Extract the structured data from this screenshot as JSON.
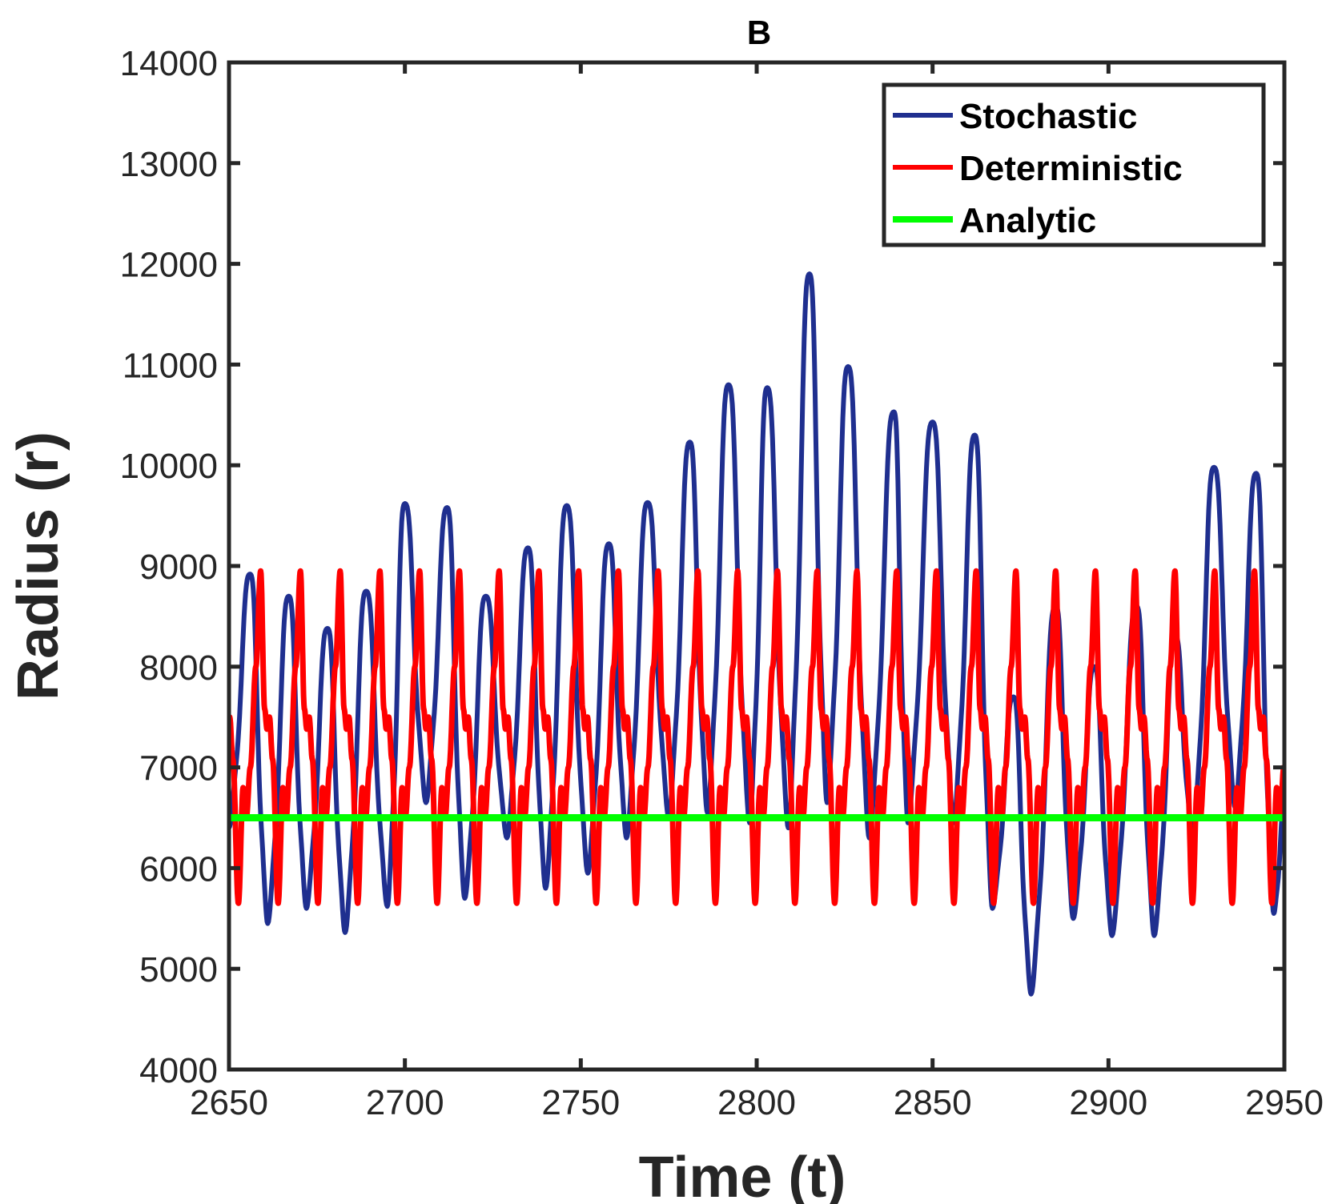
{
  "chart_data": {
    "type": "line",
    "title": "B",
    "xlabel": "Time (t)",
    "ylabel": "Radius (r)",
    "xlim": [
      2650,
      2950
    ],
    "ylim": [
      4000,
      14000
    ],
    "xticks": [
      "2650",
      "2700",
      "2750",
      "2800",
      "2850",
      "2900",
      "2950"
    ],
    "yticks": [
      "4000",
      "5000",
      "6000",
      "7000",
      "8000",
      "9000",
      "10000",
      "11000",
      "12000",
      "13000",
      "14000"
    ],
    "grid": false,
    "legend_position": "top-right",
    "series": [
      {
        "name": "Stochastic",
        "color": "#1f2f8f",
        "peaks": [
          [
            2656,
            8920
          ],
          [
            2667,
            8700
          ],
          [
            2678,
            8380
          ],
          [
            2689,
            8750
          ],
          [
            2700,
            9620
          ],
          [
            2712,
            9580
          ],
          [
            2723,
            8700
          ],
          [
            2735,
            9180
          ],
          [
            2746,
            9600
          ],
          [
            2758,
            9220
          ],
          [
            2769,
            9630
          ],
          [
            2781,
            10230
          ],
          [
            2792,
            10800
          ],
          [
            2803,
            10770
          ],
          [
            2815,
            11900
          ],
          [
            2826,
            10980
          ],
          [
            2839,
            10530
          ],
          [
            2850,
            10430
          ],
          [
            2862,
            10300
          ],
          [
            2873,
            7700
          ],
          [
            2885,
            8600
          ],
          [
            2896,
            8000
          ],
          [
            2908,
            8600
          ],
          [
            2919,
            8300
          ],
          [
            2930,
            9980
          ],
          [
            2942,
            9920
          ],
          [
            2950,
            6600
          ]
        ],
        "troughs": [
          [
            2650,
            6400
          ],
          [
            2661,
            5450
          ],
          [
            2672,
            5600
          ],
          [
            2683,
            5360
          ],
          [
            2695,
            5620
          ],
          [
            2706,
            6650
          ],
          [
            2717,
            5700
          ],
          [
            2729,
            6300
          ],
          [
            2740,
            5800
          ],
          [
            2752,
            5950
          ],
          [
            2763,
            6300
          ],
          [
            2775,
            6500
          ],
          [
            2786,
            6550
          ],
          [
            2798,
            6450
          ],
          [
            2809,
            6400
          ],
          [
            2820,
            6650
          ],
          [
            2832,
            6300
          ],
          [
            2843,
            6450
          ],
          [
            2856,
            6450
          ],
          [
            2867,
            5600
          ],
          [
            2878,
            4750
          ],
          [
            2890,
            5500
          ],
          [
            2901,
            5330
          ],
          [
            2913,
            5330
          ],
          [
            2924,
            6300
          ],
          [
            2936,
            6600
          ],
          [
            2947,
            5550
          ]
        ]
      },
      {
        "name": "Deterministic",
        "color": "#ff0000",
        "period": 11.3,
        "max": 8950,
        "min": 5650,
        "secondary_level": 7380
      },
      {
        "name": "Analytic",
        "color": "#00ff00",
        "value": 6500
      }
    ]
  }
}
